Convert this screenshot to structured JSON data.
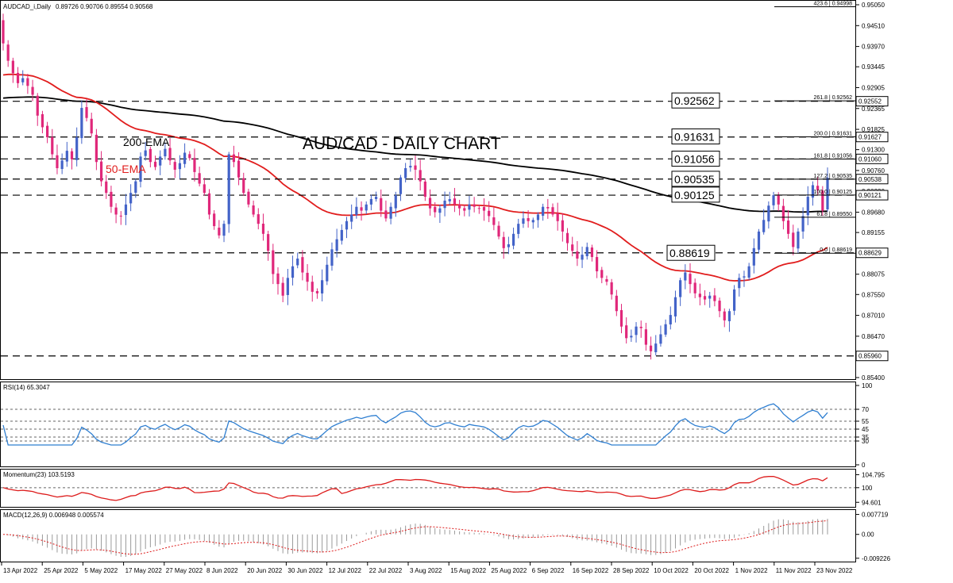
{
  "main_panel": {
    "symbol_label": "AUDCAD_i,Daily",
    "ohlc": "0.89726 0.90706 0.89554 0.90568",
    "title": "AUD/CAD - DAILY CHART",
    "ema200_label": "200-EMA",
    "ema50_label": "50-EMA",
    "y_ticks": [
      "0.95050",
      "0.94510",
      "0.93970",
      "0.93445",
      "0.92905",
      "0.92365",
      "0.91825",
      "0.91300",
      "0.90760",
      "0.90220",
      "0.89680",
      "0.89155",
      "0.88615",
      "0.88075",
      "0.87550",
      "0.87010",
      "0.86470",
      "0.85930",
      "0.85400"
    ],
    "price_tags": [
      "0.92552",
      "0.91627",
      "0.91060",
      "0.90538",
      "0.90121",
      "0.88629",
      "0.85960"
    ],
    "level_boxes": [
      "0.92562",
      "0.91631",
      "0.91056",
      "0.90535",
      "0.90125",
      "0.88619"
    ],
    "fib_labels": [
      "423.6 | 0.94998",
      "261.8 | 0.92562",
      "200.0 | 0.91631",
      "161.8 | 0.91056",
      "127.2 | 0.90535",
      "100.0 | 0.90125",
      "61.8 | 0.89550",
      "0.0 | 0.88619"
    ]
  },
  "rsi_panel": {
    "label": "RSI(14) 65.3047",
    "ticks": [
      "100",
      "70",
      "55",
      "45",
      "35",
      "30",
      "0"
    ]
  },
  "momentum_panel": {
    "label": "Momentum(23) 103.5193",
    "ticks": [
      "104.795",
      "100",
      "94.601"
    ]
  },
  "macd_panel": {
    "label": "MACD(12,26,9) 0.006948 0.005574",
    "ticks": [
      "0.007719",
      "0.00",
      "-0.009226"
    ]
  },
  "x_axis": {
    "labels": [
      "13 Apr 2022",
      "25 Apr 2022",
      "5 May 2022",
      "17 May 2022",
      "27 May 2022",
      "8 Jun 2022",
      "20 Jun 2022",
      "30 Jun 2022",
      "12 Jul 2022",
      "22 Jul 2022",
      "3 Aug 2022",
      "15 Aug 2022",
      "25 Aug 2022",
      "6 Sep 2022",
      "16 Sep 2022",
      "28 Sep 2022",
      "10 Oct 2022",
      "20 Oct 2022",
      "1 Nov 2022",
      "11 Nov 2022",
      "23 Nov 2022"
    ]
  },
  "colors": {
    "bull": "#4363c8",
    "bear": "#e0277a",
    "ema50": "#e11d1d",
    "ema200": "#000000",
    "rsi": "#2f7fd1",
    "momentum": "#dd1b1b",
    "macd_signal": "#dd1b1b",
    "macd_hist": "#9a9a9a"
  },
  "chart_data": [
    {
      "type": "candlestick",
      "title": "AUD/CAD - DAILY CHART",
      "ylim": [
        0.854,
        0.9505
      ],
      "x_range": [
        "13 Apr 2022",
        "25 Nov 2022"
      ],
      "candles_close": [
        0.9405,
        0.936,
        0.9328,
        0.9302,
        0.9315,
        0.9295,
        0.9272,
        0.9218,
        0.9188,
        0.9162,
        0.9118,
        0.9082,
        0.9102,
        0.9127,
        0.9105,
        0.9162,
        0.9238,
        0.9212,
        0.9172,
        0.9098,
        0.9048,
        0.9018,
        0.8982,
        0.8962,
        0.8958,
        0.8988,
        0.9018,
        0.9048,
        0.9112,
        0.9128,
        0.9098,
        0.9085,
        0.9112,
        0.9132,
        0.9102,
        0.9078,
        0.9095,
        0.9122,
        0.9108,
        0.9072,
        0.9042,
        0.9018,
        0.8962,
        0.8932,
        0.8908,
        0.8938,
        0.9118,
        0.9098,
        0.9058,
        0.9018,
        0.8988,
        0.8962,
        0.8938,
        0.8912,
        0.8868,
        0.8808,
        0.8782,
        0.8752,
        0.8798,
        0.8828,
        0.8848,
        0.8812,
        0.8788,
        0.8762,
        0.8758,
        0.8792,
        0.8832,
        0.8872,
        0.8898,
        0.8922,
        0.8945,
        0.8962,
        0.8982,
        0.8972,
        0.8988,
        0.9002,
        0.9008,
        0.8972,
        0.8952,
        0.8982,
        0.9012,
        0.9058,
        0.9082,
        0.9088,
        0.9078,
        0.9048,
        0.9008,
        0.8978,
        0.8968,
        0.8978,
        0.8998,
        0.9002,
        0.8988,
        0.8978,
        0.8972,
        0.8988,
        0.8982,
        0.8978,
        0.8972,
        0.8958,
        0.8935,
        0.8905,
        0.8875,
        0.8885,
        0.8912,
        0.8938,
        0.8952,
        0.8945,
        0.8948,
        0.8962,
        0.8982,
        0.8978,
        0.8962,
        0.8945,
        0.8918,
        0.8888,
        0.8868,
        0.8848,
        0.8858,
        0.8878,
        0.8852,
        0.8815,
        0.8798,
        0.8788,
        0.8755,
        0.8712,
        0.8672,
        0.8642,
        0.8648,
        0.8672,
        0.8668,
        0.8625,
        0.8608,
        0.8628,
        0.8652,
        0.8678,
        0.8702,
        0.8748,
        0.8792,
        0.8812,
        0.8782,
        0.8758,
        0.8748,
        0.8742,
        0.8752,
        0.8738,
        0.8712,
        0.8688,
        0.8712,
        0.8768,
        0.8798,
        0.8802,
        0.8828,
        0.8875,
        0.8918,
        0.8948,
        0.8985,
        0.9012,
        0.8988,
        0.8945,
        0.8912,
        0.8878,
        0.8918,
        0.8958,
        0.9008,
        0.9038,
        0.9025,
        0.8972,
        0.9057
      ]
    },
    {
      "type": "line",
      "name": "RSI(14)",
      "ylim": [
        0,
        100
      ],
      "ticks": [
        100,
        70,
        55,
        45,
        35,
        30,
        0
      ],
      "last_value": 65.3047
    },
    {
      "type": "line",
      "name": "Momentum(23)",
      "ticks": [
        104.795,
        100,
        94.601
      ],
      "last_value": 103.5193
    },
    {
      "type": "line",
      "name": "MACD(12,26,9)",
      "ticks": [
        0.007719,
        0.0,
        -0.009226
      ],
      "last_values": [
        0.006948,
        0.005574
      ]
    }
  ]
}
